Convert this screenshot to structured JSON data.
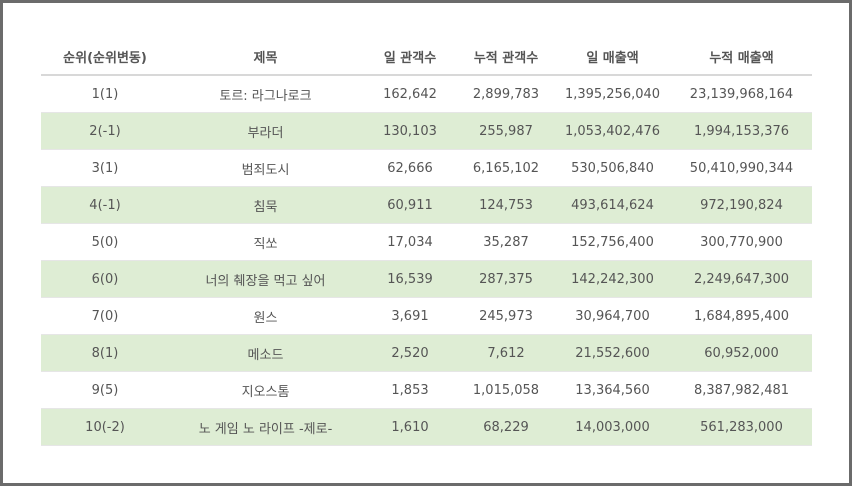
{
  "headers": [
    "순위(순위변동)",
    "제목",
    "일 관객수",
    "누적 관객수",
    "일 매출액",
    "누적 매출액"
  ],
  "rows": [
    {
      "rank": "1(1)",
      "title": "토르: 라그나로크",
      "daily_audience": "162,642",
      "total_audience": "2,899,783",
      "daily_sales": "1,395,256,040",
      "total_sales": "23,139,968,164"
    },
    {
      "rank": "2(-1)",
      "title": "부라더",
      "daily_audience": "130,103",
      "total_audience": "255,987",
      "daily_sales": "1,053,402,476",
      "total_sales": "1,994,153,376"
    },
    {
      "rank": "3(1)",
      "title": "범죄도시",
      "daily_audience": "62,666",
      "total_audience": "6,165,102",
      "daily_sales": "530,506,840",
      "total_sales": "50,410,990,344"
    },
    {
      "rank": "4(-1)",
      "title": "침묵",
      "daily_audience": "60,911",
      "total_audience": "124,753",
      "daily_sales": "493,614,624",
      "total_sales": "972,190,824"
    },
    {
      "rank": "5(0)",
      "title": "직쏘",
      "daily_audience": "17,034",
      "total_audience": "35,287",
      "daily_sales": "152,756,400",
      "total_sales": "300,770,900"
    },
    {
      "rank": "6(0)",
      "title": "너의 췌장을 먹고 싶어",
      "daily_audience": "16,539",
      "total_audience": "287,375",
      "daily_sales": "142,242,300",
      "total_sales": "2,249,647,300"
    },
    {
      "rank": "7(0)",
      "title": "원스",
      "daily_audience": "3,691",
      "total_audience": "245,973",
      "daily_sales": "30,964,700",
      "total_sales": "1,684,895,400"
    },
    {
      "rank": "8(1)",
      "title": "메소드",
      "daily_audience": "2,520",
      "total_audience": "7,612",
      "daily_sales": "21,552,600",
      "total_sales": "60,952,000"
    },
    {
      "rank": "9(5)",
      "title": "지오스톰",
      "daily_audience": "1,853",
      "total_audience": "1,015,058",
      "daily_sales": "13,364,560",
      "total_sales": "8,387,982,481"
    },
    {
      "rank": "10(-2)",
      "title": "노 게임 노 라이프 -제로-",
      "daily_audience": "1,610",
      "total_audience": "68,229",
      "daily_sales": "14,003,000",
      "total_sales": "561,283,000"
    }
  ],
  "colors": {
    "alt_row": "#deedd4",
    "frame_border": "#6b6b6b",
    "text": "#555555"
  }
}
